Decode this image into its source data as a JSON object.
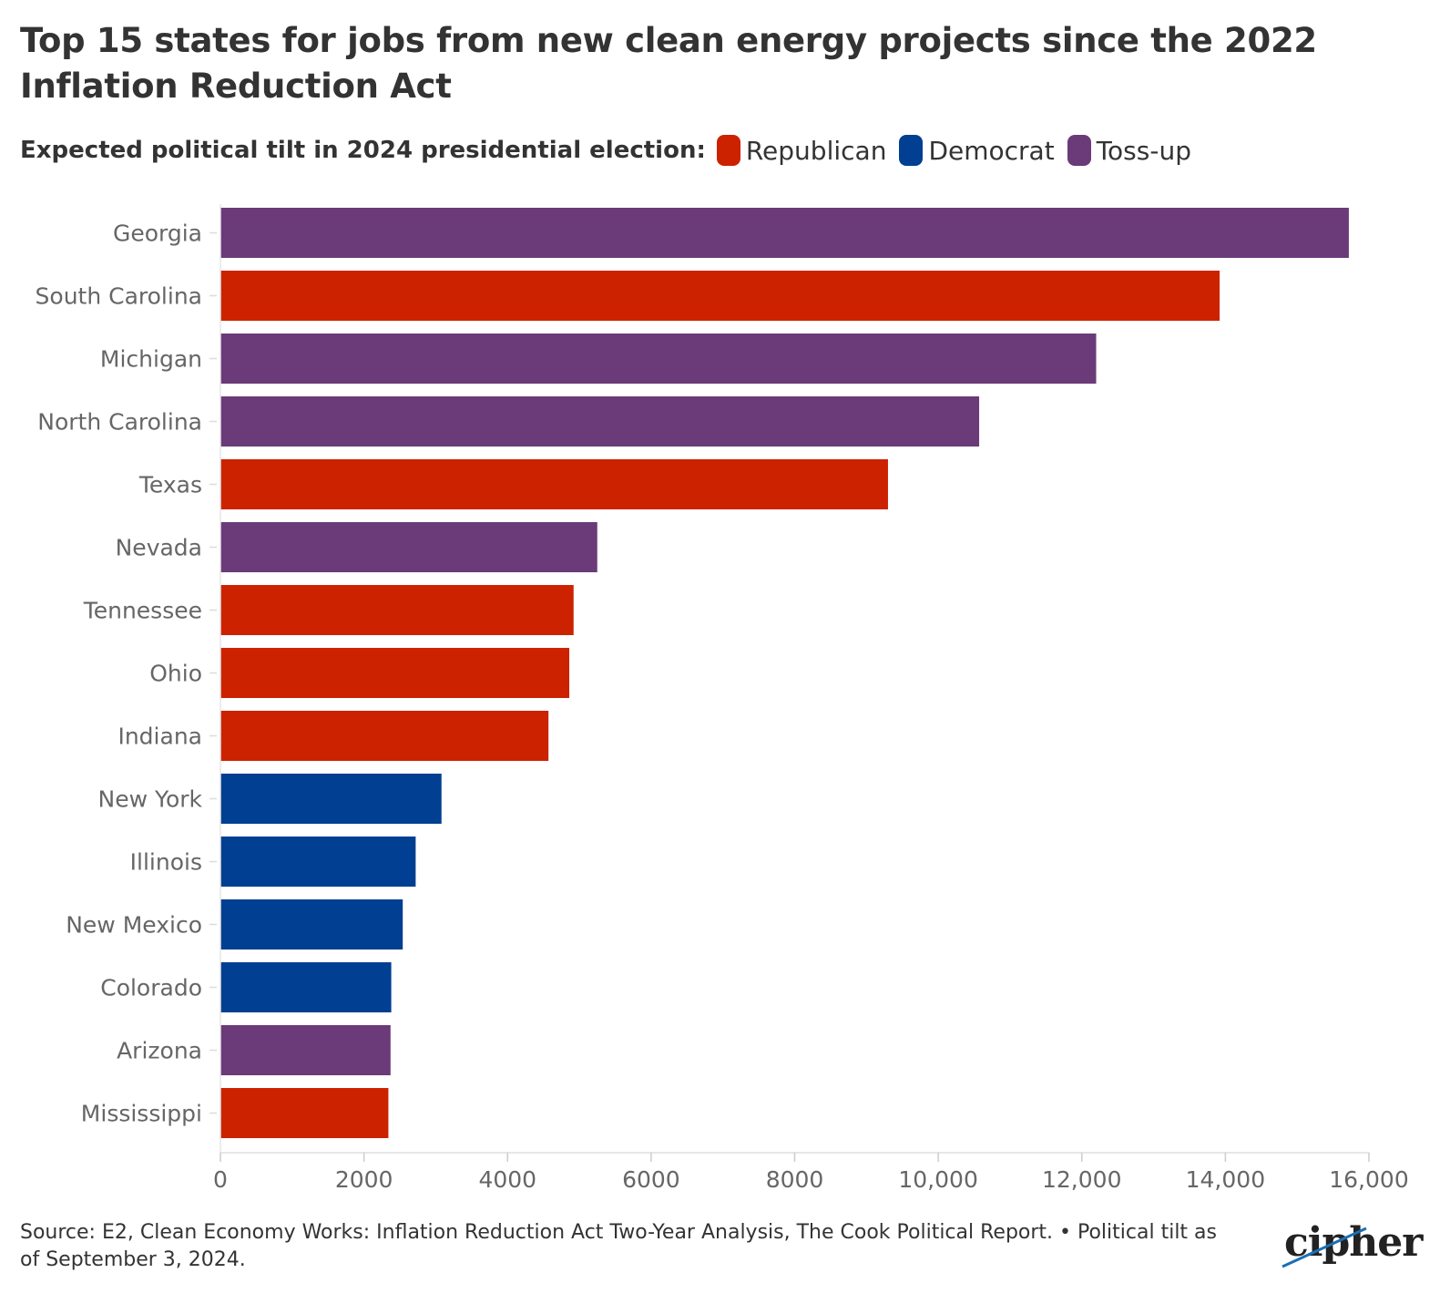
{
  "header": {
    "title": "Top 15 states for jobs from new clean energy projects since the 2022 Inflation Reduction Act"
  },
  "legend": {
    "title": "Expected political tilt in 2024 presidential election:",
    "items": [
      {
        "label": "Republican",
        "color": "#cc2200"
      },
      {
        "label": "Democrat",
        "color": "#003f91"
      },
      {
        "label": "Toss-up",
        "color": "#6b3a78"
      }
    ]
  },
  "chart_data": {
    "type": "bar",
    "orientation": "horizontal",
    "title": "Top 15 states for jobs from new clean energy projects since the 2022 Inflation Reduction Act",
    "xlabel": "",
    "ylabel": "",
    "xlim": [
      0,
      16000
    ],
    "x_ticks": [
      0,
      2000,
      4000,
      6000,
      8000,
      10000,
      12000,
      14000,
      16000
    ],
    "x_tick_labels": [
      "0",
      "2000",
      "4000",
      "6000",
      "8000",
      "10,000",
      "12,000",
      "14,000",
      "16,000"
    ],
    "grid": false,
    "legend_position": "top",
    "categories": [
      "Georgia",
      "South Carolina",
      "Michigan",
      "North Carolina",
      "Texas",
      "Nevada",
      "Tennessee",
      "Ohio",
      "Indiana",
      "New York",
      "Illinois",
      "New Mexico",
      "Colorado",
      "Arizona",
      "Mississippi"
    ],
    "values": [
      15720,
      13920,
      12200,
      10570,
      9300,
      5250,
      4920,
      4860,
      4570,
      3080,
      2720,
      2540,
      2380,
      2370,
      2340
    ],
    "tilt": [
      "Toss-up",
      "Republican",
      "Toss-up",
      "Toss-up",
      "Republican",
      "Toss-up",
      "Republican",
      "Republican",
      "Republican",
      "Democrat",
      "Democrat",
      "Democrat",
      "Democrat",
      "Toss-up",
      "Republican"
    ],
    "colors": {
      "Republican": "#cc2200",
      "Democrat": "#003f91",
      "Toss-up": "#6b3a78"
    }
  },
  "footer": {
    "source": "Source: E2, Clean Economy Works: Inflation Reduction Act Two-Year Analysis, The Cook Political Report. • Political tilt as of September 3, 2024.",
    "logo": "cipher"
  }
}
